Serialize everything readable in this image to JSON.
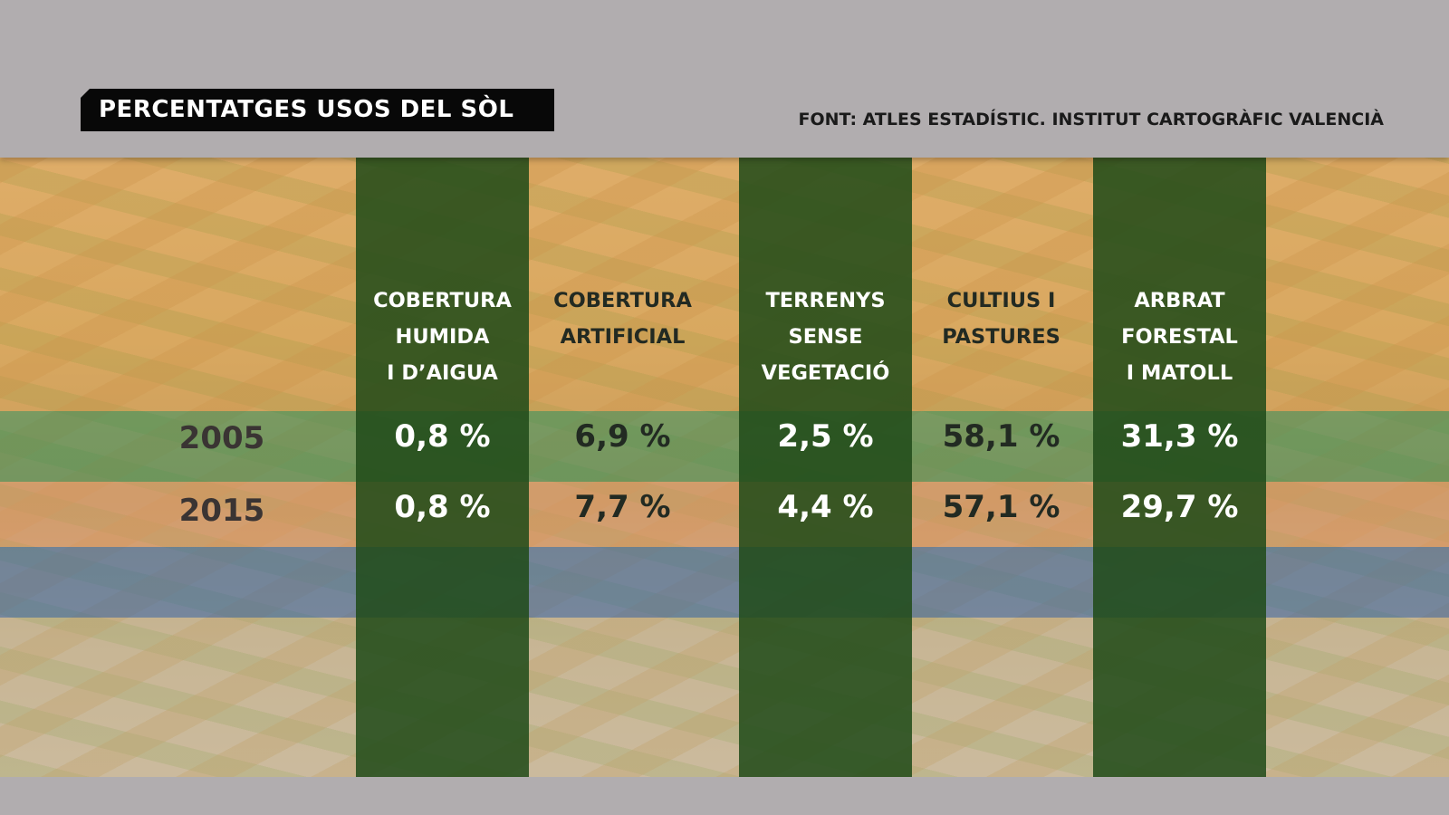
{
  "title": "PERCENTATGES USOS DEL SÒL",
  "source": "FONT: ATLES ESTADÍSTIC. INSTITUT CARTOGRÀFIC VALENCIÀ",
  "chart_data": {
    "type": "table",
    "title": "PERCENTATGES USOS DEL SÒL",
    "columns": [
      "COBERTURA\nHUMIDA\nI D’AIGUA",
      "COBERTURA\nARTIFICIAL",
      "TERRENYS\nSENSE\nVEGETACIÓ",
      "CULTIUS I\nPASTURES",
      "ARBRAT\nFORESTAL\nI MATOLL"
    ],
    "rows": [
      {
        "year": "2005",
        "values": [
          0.8,
          6.9,
          2.5,
          58.1,
          31.3
        ],
        "labels": [
          "0,8 %",
          "6,9 %",
          "2,5 %",
          "58,1 %",
          "31,3 %"
        ]
      },
      {
        "year": "2015",
        "values": [
          0.8,
          7.7,
          4.4,
          57.1,
          29.7
        ],
        "labels": [
          "0,8 %",
          "7,7 %",
          "4,4 %",
          "57,1 %",
          "29,7 %"
        ]
      }
    ],
    "unit": "%"
  }
}
